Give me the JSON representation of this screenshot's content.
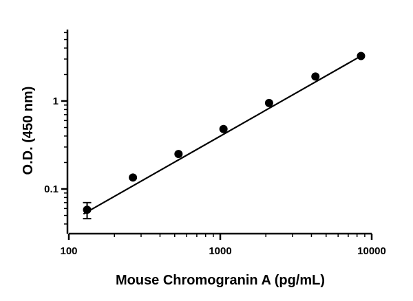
{
  "chart_data": {
    "type": "scatter",
    "title": "",
    "xlabel": "Mouse Chromogranin A (pg/mL)",
    "ylabel": "O.D. (450 nm)",
    "xscale": "log",
    "yscale": "log",
    "xlim": [
      100,
      10000
    ],
    "ylim": [
      0.03,
      6
    ],
    "x_ticks": [
      100,
      1000,
      10000
    ],
    "x_tick_labels": [
      "100",
      "1000",
      "10000"
    ],
    "y_ticks": [
      0.1,
      1
    ],
    "y_tick_labels": [
      "0.1",
      "1"
    ],
    "grid": false,
    "legend": "none",
    "colors": {
      "points": "#000000",
      "fit_line": "#000000",
      "axes": "#000000"
    },
    "series": [
      {
        "x": [
          132,
          265,
          530,
          1050,
          2100,
          4250,
          8500
        ],
        "y": [
          0.058,
          0.135,
          0.25,
          0.48,
          0.95,
          1.9,
          3.25
        ],
        "y_error": [
          0.012,
          0,
          0,
          0,
          0,
          0,
          0
        ]
      }
    ],
    "fit_line": {
      "x": [
        125,
        8500
      ],
      "y": [
        0.052,
        3.25
      ]
    }
  }
}
